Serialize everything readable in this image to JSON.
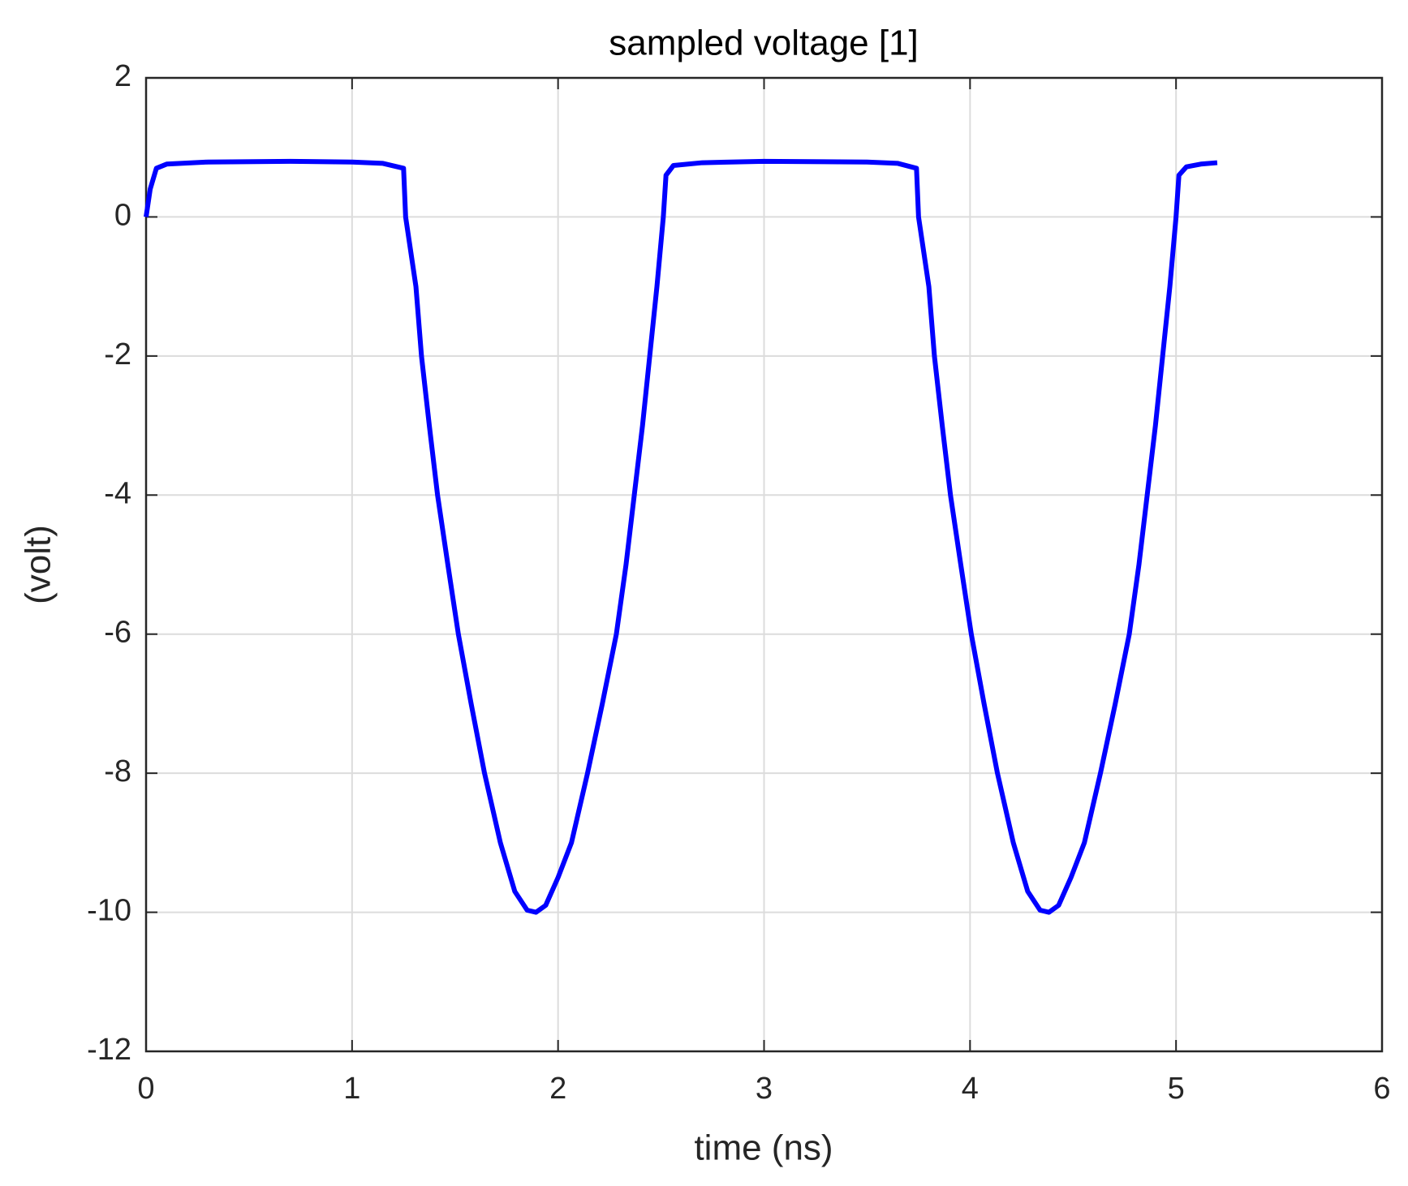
{
  "chart_data": {
    "type": "line",
    "title": "sampled voltage [1]",
    "xlabel": "time (ns)",
    "ylabel": "(volt)",
    "x": [
      0,
      0.02,
      0.05,
      0.1,
      0.3,
      0.7,
      1.0,
      1.15,
      1.25,
      1.26,
      1.28,
      1.31,
      1.337,
      1.375,
      1.415,
      1.465,
      1.516,
      1.578,
      1.643,
      1.72,
      1.79,
      1.85,
      1.893,
      1.94,
      2.0,
      2.065,
      2.143,
      2.215,
      2.283,
      2.33,
      2.37,
      2.41,
      2.445,
      2.48,
      2.511,
      2.524,
      2.56,
      2.7,
      3.0,
      3.5,
      3.65,
      3.74,
      3.75,
      3.77,
      3.8,
      3.827,
      3.865,
      3.905,
      3.955,
      4.006,
      4.068,
      4.133,
      4.21,
      4.28,
      4.34,
      4.383,
      4.43,
      4.49,
      4.555,
      4.633,
      4.705,
      4.773,
      4.82,
      4.86,
      4.9,
      4.935,
      4.97,
      5.0,
      5.014,
      5.05,
      5.12,
      5.2
    ],
    "series": [
      {
        "color": "#0000ff",
        "values": [
          0,
          0.4,
          0.7,
          0.76,
          0.79,
          0.8,
          0.79,
          0.77,
          0.7,
          0,
          -0.4,
          -1,
          -2,
          -3,
          -4,
          -5,
          -6,
          -7,
          -8,
          -9,
          -9.7,
          -9.97,
          -10,
          -9.9,
          -9.5,
          -9,
          -8,
          -7,
          -6,
          -5,
          -4,
          -3,
          -2,
          -1,
          0,
          0.6,
          0.74,
          0.78,
          0.8,
          0.79,
          0.77,
          0.7,
          0,
          -0.4,
          -1,
          -2,
          -3,
          -4,
          -5,
          -6,
          -7,
          -8,
          -9,
          -9.7,
          -9.97,
          -10,
          -9.9,
          -9.5,
          -9,
          -8,
          -7,
          -6,
          -5,
          -4,
          -3,
          -2,
          -1,
          0,
          0.6,
          0.72,
          0.76,
          0.78
        ]
      }
    ],
    "xlim": [
      0,
      6
    ],
    "xticks": [
      0,
      1,
      2,
      3,
      4,
      5,
      6
    ],
    "ylim": [
      -12,
      2
    ],
    "yticks": [
      -12,
      -10,
      -8,
      -6,
      -4,
      -2,
      0,
      2
    ],
    "grid": true
  }
}
